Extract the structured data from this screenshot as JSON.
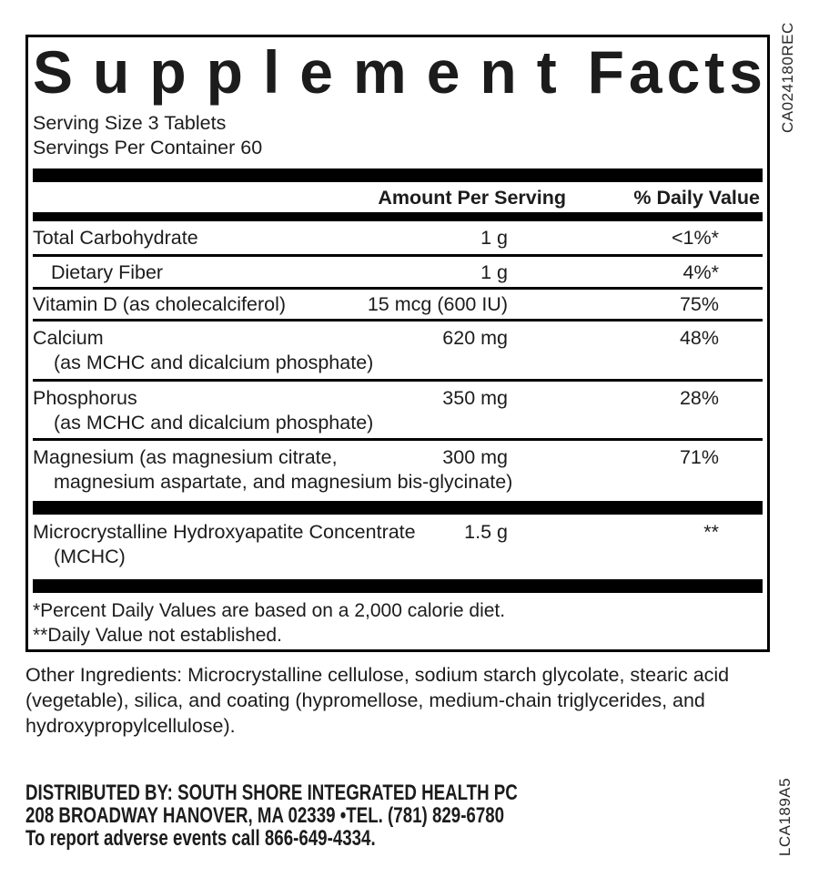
{
  "colors": {
    "ink": "#1c1c1c",
    "bar": "#000000",
    "background": "#ffffff"
  },
  "codes": {
    "top_right": "CA024180REC",
    "bottom_right": "LCA189A5"
  },
  "label": {
    "title_word1": "Supplement",
    "title_word2": "Facts",
    "serving_size": "Serving Size 3 Tablets",
    "servings_per_container": "Servings Per Container 60",
    "header": {
      "amount": "Amount Per Serving",
      "daily_value": "% Daily Value"
    },
    "rows": [
      {
        "name": "Total Carbohydrate",
        "amount": "1 g",
        "dv": "<1%*"
      },
      {
        "name": "Dietary Fiber",
        "amount": "1 g",
        "dv": "4%*"
      },
      {
        "name": "Vitamin D (as cholecalciferol)",
        "amount": "15 mcg (600 IU)",
        "dv": "75%"
      },
      {
        "name": "Calcium",
        "name2": "(as MCHC and dicalcium phosphate)",
        "amount": "620 mg",
        "dv": "48%"
      },
      {
        "name": "Phosphorus",
        "name2": "(as MCHC and dicalcium phosphate)",
        "amount": "350 mg",
        "dv": "28%"
      },
      {
        "name": "Magnesium (as magnesium citrate,",
        "name2": "magnesium aspartate, and magnesium bis-glycinate)",
        "amount": "300 mg",
        "dv": "71%"
      },
      {
        "name": "Microcrystalline Hydroxyapatite Concentrate",
        "name2": "(MCHC)",
        "amount": "1.5 g",
        "dv": "**"
      }
    ],
    "footnotes": {
      "line1": "*Percent Daily Values are based on a 2,000 calorie diet.",
      "line2": "**Daily Value not established."
    }
  },
  "other_ingredients": {
    "line1": "Other Ingredients: Microcrystalline cellulose, sodium starch glycolate, stearic acid",
    "line2": "(vegetable), silica, and coating (hypromellose, medium-chain triglycerides, and",
    "line3": "hydroxypropylcellulose)."
  },
  "distributor": {
    "line1": "DISTRIBUTED BY: SOUTH SHORE INTEGRATED HEALTH PC",
    "line2": "208 BROADWAY HANOVER, MA 02339 •TEL. (781) 829-6780",
    "line3": "To report adverse events call 866-649-4334."
  }
}
